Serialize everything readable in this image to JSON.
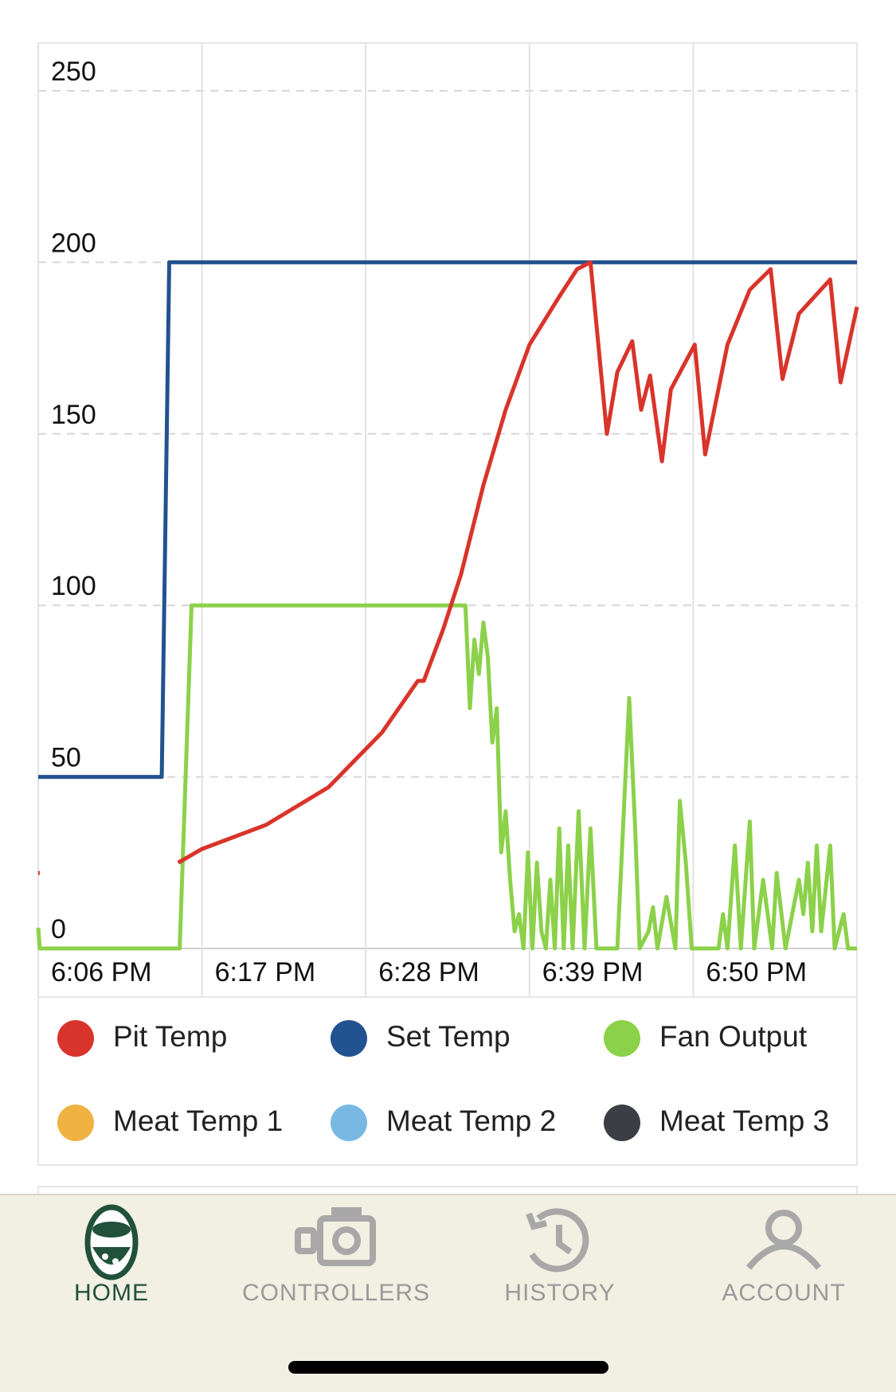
{
  "chart_data": {
    "type": "line",
    "xticks": [
      {
        "value": 1086,
        "label": "6:06 PM"
      },
      {
        "value": 1097,
        "label": "6:17 PM"
      },
      {
        "value": 1108,
        "label": "6:28 PM"
      },
      {
        "value": 1119,
        "label": "6:39 PM"
      },
      {
        "value": 1130,
        "label": "6:50 PM"
      }
    ],
    "xlim": [
      1086,
      1141
    ],
    "ylim": [
      0,
      250
    ],
    "yticks": [
      0,
      50,
      100,
      150,
      200,
      250
    ],
    "grid": true,
    "series": [
      {
        "name": "Pit Temp",
        "color": "#d9342b",
        "x": [
          1086.0,
          1086.1,
          1090,
          1095.4,
          1097,
          1101.3,
          1105.5,
          1109.1,
          1111.5,
          1111.9,
          1113.2,
          1114.4,
          1115.9,
          1117.4,
          1119.0,
          1121.0,
          1122.2,
          1123.1,
          1124.2,
          1124.9,
          1125.9,
          1126.5,
          1127.1,
          1127.9,
          1128.5,
          1130.1,
          1130.8,
          1132.3,
          1133.8,
          1135.2,
          1136.0,
          1137.1,
          1139.2,
          1139.9,
          1141.0
        ],
        "values": [
          22,
          22,
          null,
          25,
          29,
          36,
          47,
          63,
          78,
          78,
          93,
          109,
          135,
          157,
          176,
          190,
          198,
          200,
          150,
          168,
          177,
          157,
          167,
          142,
          163,
          176,
          144,
          176,
          192,
          198,
          166,
          185,
          195,
          165,
          187
        ]
      },
      {
        "name": "Set Temp",
        "color": "#225290",
        "x": [
          1086,
          1094.3,
          1094.8,
          1141
        ],
        "values": [
          50,
          50,
          200,
          200
        ]
      },
      {
        "name": "Fan Output",
        "color": "#8cd14a",
        "x": [
          1086.0,
          1086.1,
          1095.5,
          1096.3,
          1114.7,
          1115.0,
          1115.3,
          1115.6,
          1115.9,
          1116.2,
          1116.5,
          1116.8,
          1117.1,
          1117.4,
          1117.7,
          1118.0,
          1118.3,
          1118.6,
          1118.9,
          1119.2,
          1119.5,
          1119.8,
          1120.1,
          1120.4,
          1120.7,
          1121.0,
          1121.3,
          1121.6,
          1121.9,
          1122.3,
          1122.7,
          1123.1,
          1123.5,
          1124.9,
          1125.7,
          1126.1,
          1126.4,
          1127.0,
          1127.3,
          1127.6,
          1128.2,
          1128.8,
          1129.1,
          1129.5,
          1129.9,
          1131.7,
          1132.0,
          1132.3,
          1132.8,
          1133.2,
          1133.8,
          1134.1,
          1134.7,
          1135.3,
          1135.6,
          1136.2,
          1137.1,
          1137.4,
          1137.7,
          1138.0,
          1138.3,
          1138.6,
          1139.2,
          1139.5,
          1140.1,
          1140.4,
          1141.0
        ],
        "values": [
          6,
          0,
          0,
          100,
          100,
          70,
          90,
          80,
          95,
          85,
          60,
          70,
          28,
          40,
          20,
          5,
          10,
          0,
          28,
          0,
          25,
          5,
          0,
          20,
          0,
          35,
          0,
          30,
          0,
          40,
          0,
          35,
          0,
          0,
          73,
          35,
          0,
          5,
          12,
          0,
          15,
          0,
          43,
          25,
          0,
          0,
          10,
          0,
          30,
          0,
          37,
          0,
          20,
          0,
          22,
          0,
          20,
          10,
          25,
          5,
          30,
          5,
          30,
          0,
          10,
          0,
          0
        ]
      },
      {
        "name": "Meat Temp 1",
        "color": "#f0b240",
        "x": [],
        "values": []
      },
      {
        "name": "Meat Temp 2",
        "color": "#79b8e3",
        "x": [],
        "values": []
      },
      {
        "name": "Meat Temp 3",
        "color": "#3b3e45",
        "x": [],
        "values": []
      }
    ]
  },
  "tab_bar": {
    "tabs": [
      "HOME",
      "CONTROLLERS",
      "HISTORY",
      "ACCOUNT"
    ],
    "active": 0
  }
}
